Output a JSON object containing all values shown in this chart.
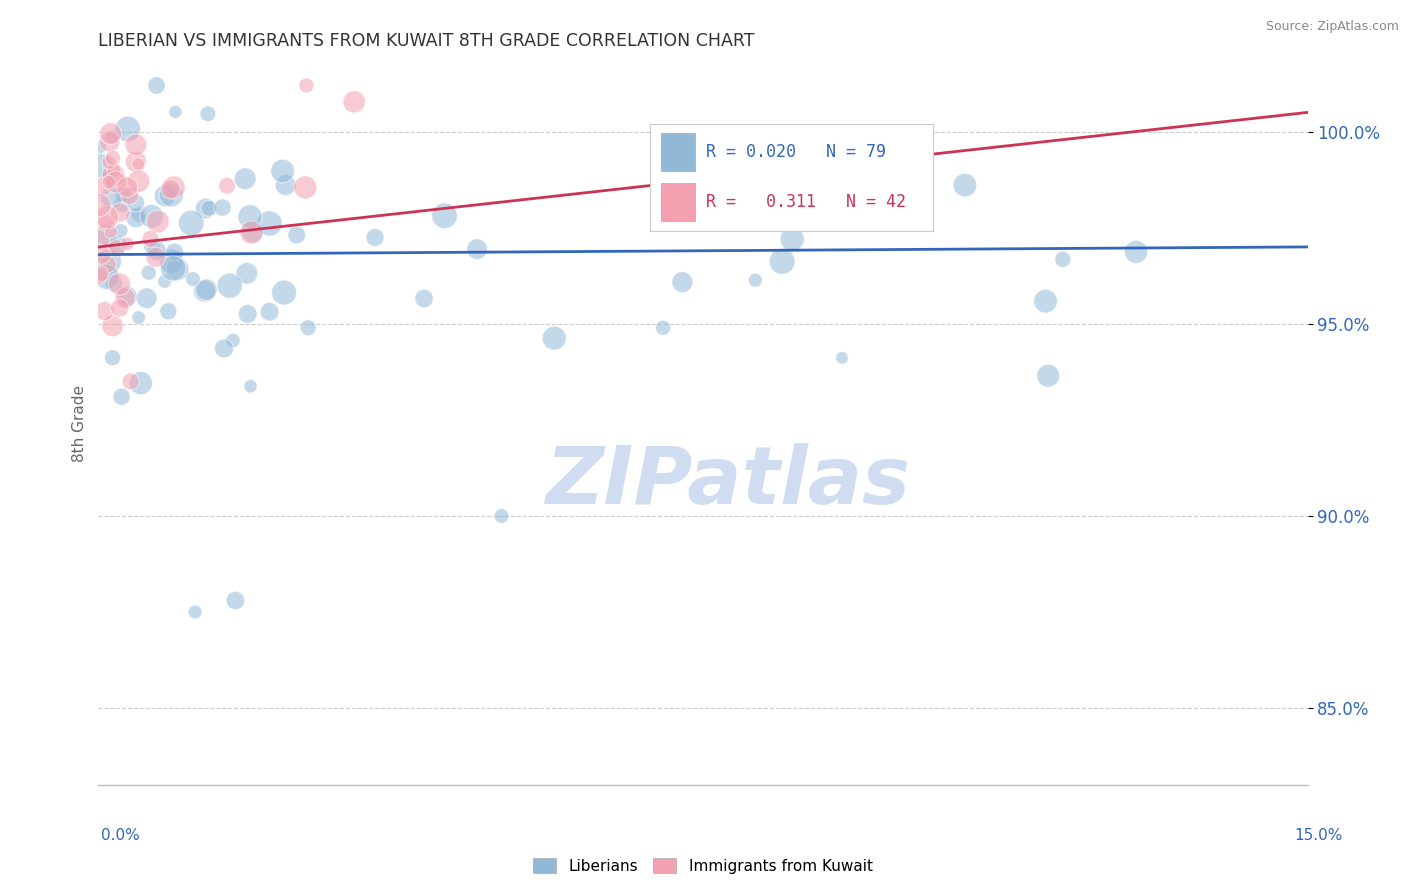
{
  "title": "LIBERIAN VS IMMIGRANTS FROM KUWAIT 8TH GRADE CORRELATION CHART",
  "source": "Source: ZipAtlas.com",
  "legend_blue_label": "Liberians",
  "legend_pink_label": "Immigrants from Kuwait",
  "blue_R": 0.02,
  "blue_N": 79,
  "pink_R": 0.311,
  "pink_N": 42,
  "xmin": 0.0,
  "xmax": 15.0,
  "ymin": 83.0,
  "ymax": 101.8,
  "yticks": [
    85.0,
    90.0,
    95.0,
    100.0
  ],
  "ytick_labels": [
    "85.0%",
    "90.0%",
    "95.0%",
    "100.0%"
  ],
  "blue_color": "#92B8D8",
  "pink_color": "#F4A0B0",
  "blue_line_color": "#3366BB",
  "pink_line_color": "#CC3355",
  "background_color": "#FFFFFF",
  "grid_color": "#CCCCCC",
  "title_color": "#333333",
  "axis_label_color": "#666666",
  "watermark_color": "#D0DCF0",
  "blue_trend_y0": 96.8,
  "blue_trend_y1": 97.0,
  "pink_trend_y0": 97.0,
  "pink_trend_y1": 100.5
}
